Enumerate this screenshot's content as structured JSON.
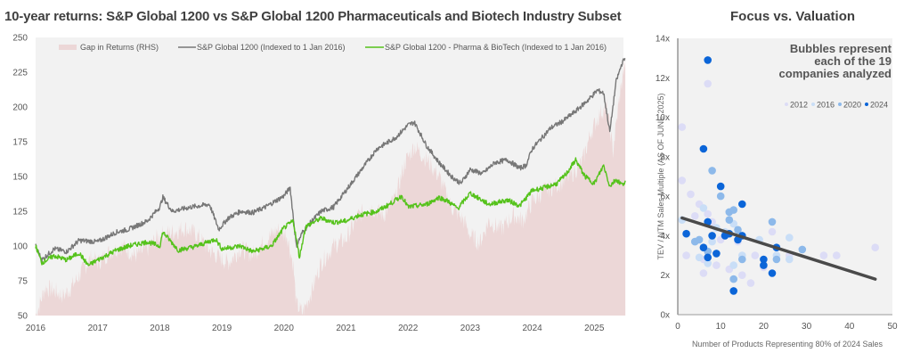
{
  "chart_data": [
    {
      "type": "line",
      "title": "10-year returns: S&P Global 1200 vs S&P Global 1200 Pharmaceuticals and Biotech Industry Subset",
      "xlabel": "",
      "ylabel": "",
      "x_ticks": [
        "2016",
        "2017",
        "2018",
        "2019",
        "2020",
        "2021",
        "2022",
        "2023",
        "2024",
        "2025"
      ],
      "y_ticks": [
        "50",
        "75",
        "100",
        "125",
        "150",
        "175",
        "200",
        "225",
        "250"
      ],
      "ylim": [
        50,
        250
      ],
      "xlim": [
        2016.0,
        2025.5
      ],
      "grid": false,
      "legend": "top",
      "series": [
        {
          "name": "Gap in Returns (RHS)",
          "kind": "area",
          "color": "#ecd7d7",
          "x": [
            2016.0,
            2016.05,
            2016.15,
            2016.3,
            2016.45,
            2016.6,
            2016.75,
            2016.9,
            2017.0,
            2017.2,
            2017.4,
            2017.6,
            2017.8,
            2018.0,
            2018.2,
            2018.4,
            2018.6,
            2018.8,
            2018.95,
            2019.1,
            2019.3,
            2019.5,
            2019.7,
            2019.9,
            2020.05,
            2020.15,
            2020.2,
            2020.3,
            2020.45,
            2020.6,
            2020.8,
            2021.0,
            2021.2,
            2021.4,
            2021.6,
            2021.8,
            2021.95,
            2022.1,
            2022.3,
            2022.5,
            2022.7,
            2022.9,
            2023.0,
            2023.15,
            2023.3,
            2023.5,
            2023.7,
            2023.85,
            2024.0,
            2024.2,
            2024.4,
            2024.6,
            2024.8,
            2024.95,
            2025.1,
            2025.2,
            2025.3,
            2025.4,
            2025.5
          ],
          "values": [
            50,
            56,
            70,
            68,
            64,
            72,
            82,
            92,
            88,
            96,
            100,
            93,
            98,
            108,
            110,
            113,
            108,
            97,
            92,
            88,
            98,
            94,
            104,
            112,
            108,
            86,
            58,
            52,
            68,
            88,
            100,
            105,
            122,
            128,
            122,
            135,
            160,
            172,
            162,
            150,
            128,
            118,
            108,
            102,
            118,
            112,
            122,
            118,
            132,
            140,
            144,
            150,
            160,
            182,
            196,
            200,
            168,
            205,
            235
          ]
        },
        {
          "name": "S&P Global 1200 (Indexed to 1 Jan 2016)",
          "color": "#777777",
          "x": [
            2016.0,
            2016.1,
            2016.3,
            2016.5,
            2016.7,
            2017.0,
            2017.3,
            2017.5,
            2017.8,
            2018.0,
            2018.05,
            2018.2,
            2018.5,
            2018.8,
            2018.95,
            2019.1,
            2019.3,
            2019.5,
            2019.7,
            2020.0,
            2020.1,
            2020.2,
            2020.3,
            2020.45,
            2020.6,
            2020.8,
            2021.0,
            2021.3,
            2021.5,
            2021.8,
            2022.0,
            2022.1,
            2022.3,
            2022.5,
            2022.7,
            2022.85,
            2023.0,
            2023.2,
            2023.4,
            2023.6,
            2023.8,
            2023.9,
            2024.0,
            2024.3,
            2024.5,
            2024.7,
            2024.9,
            2025.05,
            2025.15,
            2025.25,
            2025.35,
            2025.45,
            2025.5
          ],
          "values": [
            100,
            90,
            98,
            96,
            104,
            103,
            110,
            112,
            118,
            128,
            135,
            125,
            128,
            130,
            112,
            120,
            125,
            124,
            128,
            136,
            142,
            100,
            110,
            118,
            125,
            128,
            140,
            158,
            170,
            178,
            187,
            189,
            172,
            160,
            150,
            145,
            155,
            152,
            160,
            162,
            156,
            158,
            170,
            185,
            190,
            197,
            205,
            212,
            210,
            182,
            218,
            232,
            235
          ]
        },
        {
          "name": "S&P Global 1200 - Pharma & BioTech (Indexed to 1 Jan 2016)",
          "color": "#55c21b",
          "x": [
            2016.0,
            2016.1,
            2016.3,
            2016.5,
            2016.7,
            2016.85,
            2017.0,
            2017.3,
            2017.5,
            2017.8,
            2018.0,
            2018.05,
            2018.3,
            2018.6,
            2018.9,
            2019.0,
            2019.3,
            2019.5,
            2019.8,
            2020.0,
            2020.15,
            2020.25,
            2020.35,
            2020.6,
            2020.8,
            2021.0,
            2021.2,
            2021.5,
            2021.7,
            2021.9,
            2022.0,
            2022.3,
            2022.5,
            2022.65,
            2022.8,
            2023.0,
            2023.3,
            2023.6,
            2023.8,
            2024.0,
            2024.2,
            2024.4,
            2024.55,
            2024.7,
            2024.85,
            2025.0,
            2025.15,
            2025.25,
            2025.35,
            2025.45,
            2025.5
          ],
          "values": [
            100,
            88,
            93,
            90,
            95,
            86,
            90,
            97,
            100,
            103,
            100,
            110,
            97,
            100,
            105,
            98,
            100,
            96,
            100,
            113,
            118,
            92,
            114,
            120,
            117,
            118,
            122,
            125,
            130,
            136,
            128,
            130,
            135,
            132,
            127,
            138,
            130,
            133,
            129,
            140,
            142,
            145,
            152,
            162,
            150,
            145,
            158,
            143,
            148,
            144,
            147
          ]
        }
      ]
    },
    {
      "type": "scatter",
      "title": "Focus vs. Valuation",
      "xlabel": "Number of Products Representing 80% of 2024 Sales",
      "ylabel": "TEV / NTM Sales Multiple (AS OF JUNE 2025)",
      "x_ticks": [
        "0",
        "10",
        "20",
        "30",
        "40",
        "50"
      ],
      "y_ticks": [
        "0x",
        "2x",
        "4x",
        "6x",
        "8x",
        "10x",
        "12x",
        "14x"
      ],
      "xlim": [
        0,
        50
      ],
      "ylim": [
        0,
        14
      ],
      "grid": false,
      "legend": "top-right",
      "annotation": "Bubbles represent each of the 19 companies analyzed",
      "annotation_lines": [
        "Bubbles represent",
        "each of the 19",
        "companies analyzed"
      ],
      "trendline": {
        "x": [
          1,
          46
        ],
        "y": [
          4.9,
          1.8
        ],
        "color": "#4a4a4a"
      },
      "series": [
        {
          "name": "2012",
          "color": "#dcdcf6",
          "points": [
            [
              1,
              9.5
            ],
            [
              1,
              6.8
            ],
            [
              2,
              3.0
            ],
            [
              3,
              6.1
            ],
            [
              4,
              5.0
            ],
            [
              5,
              5.6
            ],
            [
              6,
              2.8
            ],
            [
              7,
              5.1
            ],
            [
              8,
              4.7
            ],
            [
              9,
              2.5
            ],
            [
              10,
              3.8
            ],
            [
              12,
              2.3
            ],
            [
              14,
              3.7
            ],
            [
              15,
              2.0
            ],
            [
              17,
              1.6
            ],
            [
              18,
              3.0
            ],
            [
              20,
              2.4
            ],
            [
              22,
              4.2
            ],
            [
              26,
              3.0
            ],
            [
              34,
              3.0
            ],
            [
              37,
              3.0
            ],
            [
              46,
              3.4
            ],
            [
              7,
              11.7
            ],
            [
              6,
              2.1
            ]
          ]
        },
        {
          "name": "2016",
          "color": "#c9def7",
          "points": [
            [
              1,
              4.8
            ],
            [
              4,
              3.7
            ],
            [
              6,
              5.4
            ],
            [
              7,
              2.6
            ],
            [
              8,
              3.7
            ],
            [
              11,
              4.2
            ],
            [
              12,
              5.2
            ],
            [
              13,
              4.6
            ],
            [
              15,
              3.0
            ],
            [
              19,
              3.8
            ],
            [
              23,
              3.0
            ],
            [
              26,
              3.9
            ],
            [
              26,
              2.8
            ],
            [
              9,
              4.4
            ],
            [
              5,
              2.9
            ],
            [
              13,
              2.5
            ]
          ]
        },
        {
          "name": "2020",
          "color": "#8db9ea",
          "points": [
            [
              8,
              7.3
            ],
            [
              10,
              6.0
            ],
            [
              12,
              5.2
            ],
            [
              13,
              5.3
            ],
            [
              12,
              4.8
            ],
            [
              14,
              4.3
            ],
            [
              4,
              3.7
            ],
            [
              5,
              3.8
            ],
            [
              15,
              2.8
            ],
            [
              13,
              1.8
            ],
            [
              22,
              4.7
            ],
            [
              23,
              2.8
            ],
            [
              29,
              3.3
            ],
            [
              7,
              3.2
            ]
          ]
        },
        {
          "name": "2024",
          "color": "#0b65d8",
          "points": [
            [
              7,
              12.9
            ],
            [
              6,
              8.4
            ],
            [
              10,
              6.5
            ],
            [
              15,
              5.6
            ],
            [
              7,
              4.7
            ],
            [
              2,
              4.1
            ],
            [
              8,
              4.0
            ],
            [
              11,
              4.0
            ],
            [
              12,
              4.1
            ],
            [
              15,
              4.0
            ],
            [
              14,
              3.8
            ],
            [
              6,
              3.4
            ],
            [
              9,
              3.1
            ],
            [
              7,
              2.9
            ],
            [
              20,
              2.8
            ],
            [
              20,
              2.5
            ],
            [
              22,
              2.1
            ],
            [
              23,
              3.4
            ],
            [
              13,
              1.2
            ]
          ]
        }
      ]
    }
  ]
}
